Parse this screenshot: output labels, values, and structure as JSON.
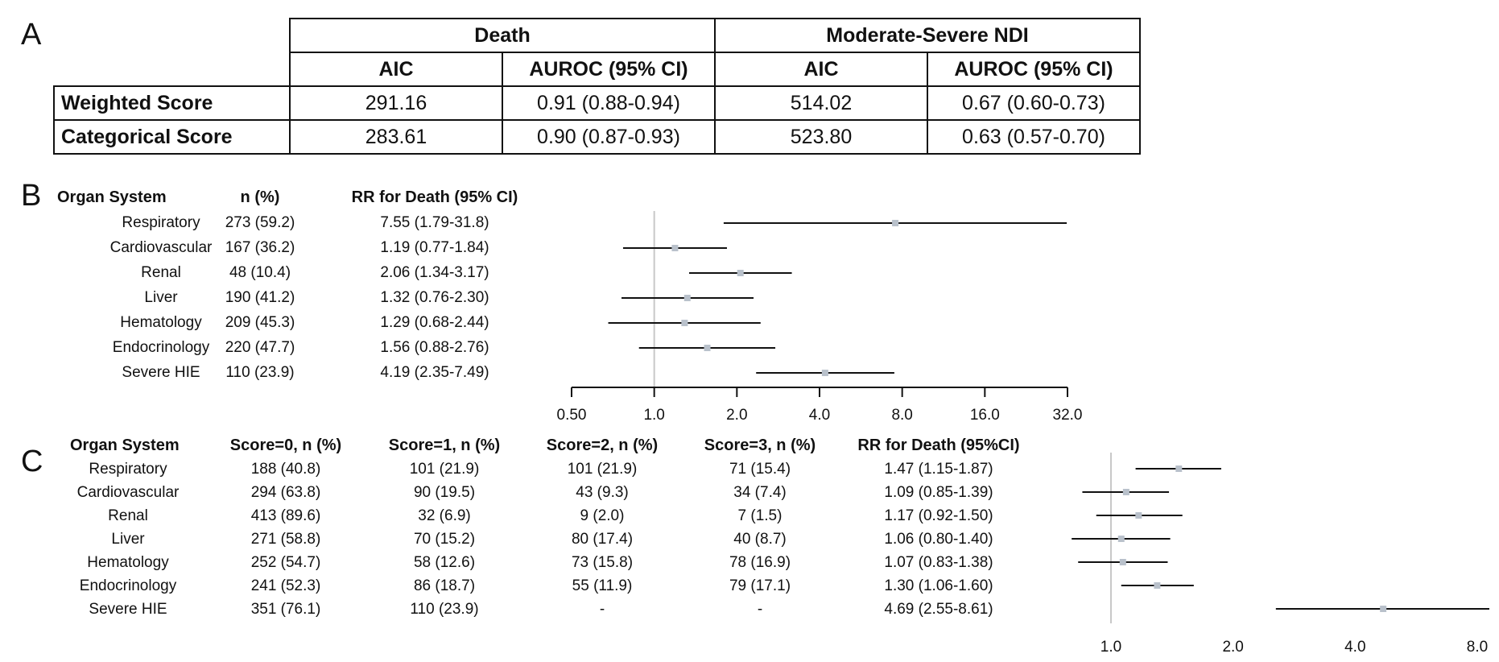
{
  "panels": {
    "a": "A",
    "b": "B",
    "c": "C"
  },
  "table_a": {
    "groups": [
      "Death",
      "Moderate-Severe NDI"
    ],
    "subheaders": [
      "AIC",
      "AUROC (95% CI)",
      "AIC",
      "AUROC (95% CI)"
    ],
    "rows": [
      {
        "label": "Weighted Score",
        "cells": [
          "291.16",
          "0.91 (0.88-0.94)",
          "514.02",
          "0.67 (0.60-0.73)"
        ]
      },
      {
        "label": "Categorical Score",
        "cells": [
          "283.61",
          "0.90 (0.87-0.93)",
          "523.80",
          "0.63 (0.57-0.70)"
        ]
      }
    ]
  },
  "forest_b": {
    "headers": {
      "system": "Organ System",
      "n": "n (%)",
      "rr": "RR for Death (95% CI)"
    },
    "rows": [
      {
        "system": "Respiratory",
        "n": "273 (59.2)",
        "rr": "7.55 (1.79-31.8)"
      },
      {
        "system": "Cardiovascular",
        "n": "167 (36.2)",
        "rr": "1.19 (0.77-1.84)"
      },
      {
        "system": "Renal",
        "n": "48 (10.4)",
        "rr": "2.06 (1.34-3.17)"
      },
      {
        "system": "Liver",
        "n": "190 (41.2)",
        "rr": "1.32 (0.76-2.30)"
      },
      {
        "system": "Hematology",
        "n": "209 (45.3)",
        "rr": "1.29 (0.68-2.44)"
      },
      {
        "system": "Endocrinology",
        "n": "220 (47.7)",
        "rr": "1.56 (0.88-2.76)"
      },
      {
        "system": "Severe HIE",
        "n": "110 (23.9)",
        "rr": "4.19 (2.35-7.49)"
      }
    ]
  },
  "forest_c": {
    "headers": {
      "system": "Organ System",
      "s0": "Score=0, n (%)",
      "s1": "Score=1, n (%)",
      "s2": "Score=2, n (%)",
      "s3": "Score=3, n (%)",
      "rr": "RR for Death (95%CI)"
    },
    "rows": [
      {
        "system": "Respiratory",
        "s0": "188 (40.8)",
        "s1": "101 (21.9)",
        "s2": "101 (21.9)",
        "s3": "71 (15.4)",
        "rr": "1.47 (1.15-1.87)"
      },
      {
        "system": "Cardiovascular",
        "s0": "294 (63.8)",
        "s1": "90 (19.5)",
        "s2": "43 (9.3)",
        "s3": "34 (7.4)",
        "rr": "1.09 (0.85-1.39)"
      },
      {
        "system": "Renal",
        "s0": "413 (89.6)",
        "s1": "32 (6.9)",
        "s2": "9 (2.0)",
        "s3": "7 (1.5)",
        "rr": "1.17 (0.92-1.50)"
      },
      {
        "system": "Liver",
        "s0": "271 (58.8)",
        "s1": "70 (15.2)",
        "s2": "80 (17.4)",
        "s3": "40 (8.7)",
        "rr": "1.06 (0.80-1.40)"
      },
      {
        "system": "Hematology",
        "s0": "252 (54.7)",
        "s1": "58 (12.6)",
        "s2": "73 (15.8)",
        "s3": "78 (16.9)",
        "rr": "1.07 (0.83-1.38)"
      },
      {
        "system": "Endocrinology",
        "s0": "241 (52.3)",
        "s1": "86 (18.7)",
        "s2": "55 (11.9)",
        "s3": "79 (17.1)",
        "rr": "1.30 (1.06-1.60)"
      },
      {
        "system": "Severe HIE",
        "s0": "351 (76.1)",
        "s1": "110 (23.9)",
        "s2": "-",
        "s3": "-",
        "rr": "4.69 (2.55-8.61)"
      }
    ]
  },
  "chart_data": [
    {
      "type": "forest",
      "panel": "B",
      "scale": "log2",
      "xlim": [
        0.5,
        32
      ],
      "ticks": [
        "0.50",
        "1.0",
        "2.0",
        "4.0",
        "8.0",
        "16.0",
        "32.0"
      ],
      "reference_line": 1.0,
      "categories": [
        "Respiratory",
        "Cardiovascular",
        "Renal",
        "Liver",
        "Hematology",
        "Endocrinology",
        "Severe HIE"
      ],
      "estimate": [
        7.55,
        1.19,
        2.06,
        1.32,
        1.29,
        1.56,
        4.19
      ],
      "lower": [
        1.79,
        0.77,
        1.34,
        0.76,
        0.68,
        0.88,
        2.35
      ],
      "upper": [
        31.8,
        1.84,
        3.17,
        2.3,
        2.44,
        2.76,
        7.49
      ]
    },
    {
      "type": "forest",
      "panel": "C",
      "scale": "log2",
      "xlim": [
        0.85,
        8.2
      ],
      "ticks": [
        "1.0",
        "2.0",
        "4.0",
        "8.0"
      ],
      "reference_line": 1.0,
      "categories": [
        "Respiratory",
        "Cardiovascular",
        "Renal",
        "Liver",
        "Hematology",
        "Endocrinology",
        "Severe HIE"
      ],
      "estimate": [
        1.47,
        1.09,
        1.17,
        1.06,
        1.07,
        1.3,
        4.69
      ],
      "lower": [
        1.15,
        0.85,
        0.92,
        0.8,
        0.83,
        1.06,
        2.55
      ],
      "upper": [
        1.87,
        1.39,
        1.5,
        1.4,
        1.38,
        1.6,
        8.61
      ]
    }
  ]
}
